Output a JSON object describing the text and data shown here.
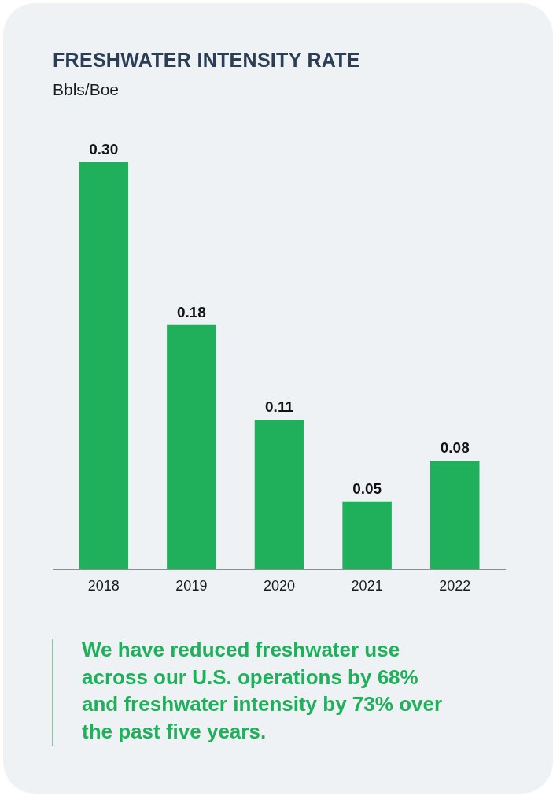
{
  "chart_data": {
    "type": "bar",
    "title": "FRESHWATER INTENSITY RATE",
    "subtitle": "Bbls/Boe",
    "categories": [
      "2018",
      "2019",
      "2020",
      "2021",
      "2022"
    ],
    "values": [
      0.3,
      0.18,
      0.11,
      0.05,
      0.08
    ],
    "color": "#20b05c",
    "value_labels": [
      "0.30",
      "0.18",
      "0.11",
      "0.05",
      "0.08"
    ],
    "annotations": [
      "We have reduced freshwater use across our U.S. operations by 68% and freshwater intensity by 73% over the past five years."
    ]
  }
}
